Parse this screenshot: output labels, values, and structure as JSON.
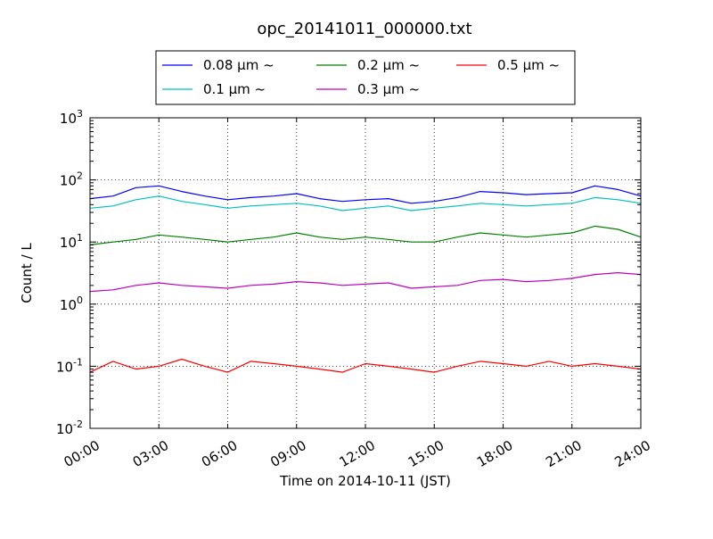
{
  "chart_data": {
    "type": "line",
    "title": "opc_20141011_000000.txt",
    "xlabel": "Time on 2014-10-11 (JST)",
    "ylabel": "Count / L",
    "y_scale": "log",
    "ylim": [
      0.01,
      1000
    ],
    "xlim": [
      "00:00",
      "24:00"
    ],
    "x_ticks": [
      "00:00",
      "03:00",
      "06:00",
      "09:00",
      "12:00",
      "15:00",
      "18:00",
      "21:00",
      "24:00"
    ],
    "y_ticks": [
      {
        "base": "10",
        "exp": "-2"
      },
      {
        "base": "10",
        "exp": "-1"
      },
      {
        "base": "10",
        "exp": "0"
      },
      {
        "base": "10",
        "exp": "1"
      },
      {
        "base": "10",
        "exp": "2"
      },
      {
        "base": "10",
        "exp": "3"
      }
    ],
    "grid": true,
    "legend_position": "top",
    "x_hours": [
      0,
      1,
      2,
      3,
      4,
      5,
      6,
      7,
      8,
      9,
      10,
      11,
      12,
      13,
      14,
      15,
      16,
      17,
      18,
      19,
      20,
      21,
      22,
      23,
      24
    ],
    "series": [
      {
        "name": "0.08 μm ~",
        "color": "#0000ff",
        "values": [
          50,
          55,
          75,
          80,
          65,
          55,
          48,
          52,
          55,
          60,
          50,
          45,
          48,
          50,
          42,
          45,
          52,
          65,
          62,
          58,
          60,
          62,
          80,
          70,
          55
        ]
      },
      {
        "name": "0.1 μm ~",
        "color": "#00bfbf",
        "values": [
          35,
          38,
          48,
          55,
          45,
          40,
          35,
          38,
          40,
          42,
          38,
          32,
          35,
          38,
          32,
          35,
          38,
          42,
          40,
          38,
          40,
          42,
          52,
          48,
          42
        ]
      },
      {
        "name": "0.2 μm ~",
        "color": "#008000",
        "values": [
          9,
          10,
          11,
          13,
          12,
          11,
          10,
          11,
          12,
          14,
          12,
          11,
          12,
          11,
          10,
          10,
          12,
          14,
          13,
          12,
          13,
          14,
          18,
          16,
          12
        ]
      },
      {
        "name": "0.3 μm ~",
        "color": "#bf00bf",
        "values": [
          1.6,
          1.7,
          2.0,
          2.2,
          2.0,
          1.9,
          1.8,
          2.0,
          2.1,
          2.3,
          2.2,
          2.0,
          2.1,
          2.2,
          1.8,
          1.9,
          2.0,
          2.4,
          2.5,
          2.3,
          2.4,
          2.6,
          3.0,
          3.2,
          3.0
        ]
      },
      {
        "name": "0.5 μm ~",
        "color": "#ff0000",
        "values": [
          0.08,
          0.12,
          0.09,
          0.1,
          0.13,
          0.1,
          0.08,
          0.12,
          0.11,
          0.1,
          0.09,
          0.08,
          0.11,
          0.1,
          0.09,
          0.08,
          0.1,
          0.12,
          0.11,
          0.1,
          0.12,
          0.1,
          0.11,
          0.1,
          0.09
        ]
      }
    ]
  }
}
